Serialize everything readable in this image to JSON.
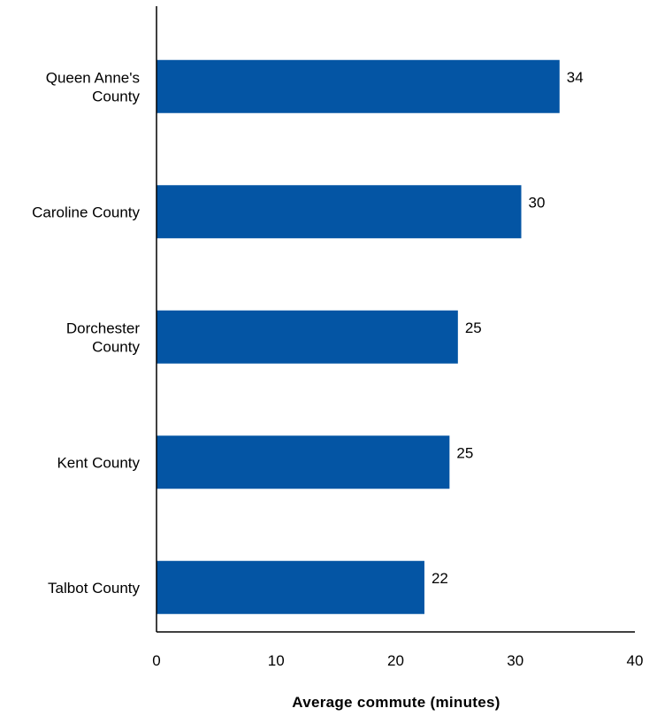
{
  "chart_data": {
    "type": "bar",
    "orientation": "horizontal",
    "categories": [
      "Queen Anne's County",
      "Caroline County",
      "Dorchester County",
      "Kent County",
      "Talbot County"
    ],
    "category_lines": [
      [
        "Queen Anne's",
        "County"
      ],
      [
        "Caroline County"
      ],
      [
        "Dorchester",
        "County"
      ],
      [
        "Kent County"
      ],
      [
        "Talbot County"
      ]
    ],
    "values": [
      33.7,
      30.5,
      25.2,
      24.5,
      22.4
    ],
    "data_labels": [
      "34",
      "30",
      "25",
      "25",
      "22"
    ],
    "title": "",
    "xlabel": "Average commute (minutes)",
    "ylabel": "",
    "xlim": [
      0,
      40
    ],
    "x_ticks": [
      0,
      10,
      20,
      30,
      40
    ],
    "grid": false,
    "legend": "none",
    "colors": {
      "bar": "#0455A4",
      "axis": "#000000"
    }
  }
}
